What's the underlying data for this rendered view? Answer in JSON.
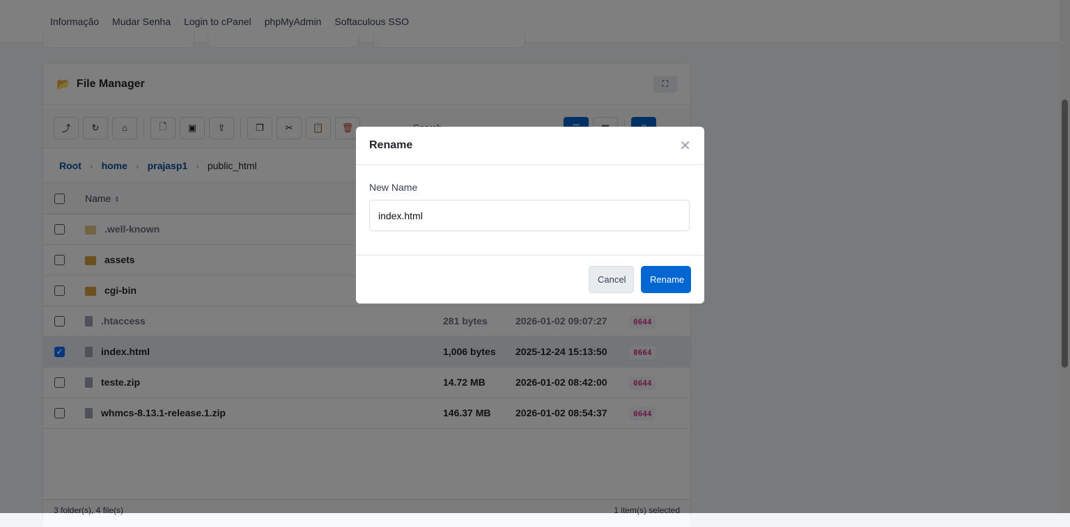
{
  "nav": [
    "Informação",
    "Mudar Senha",
    "Login to cPanel",
    "phpMyAdmin",
    "Softaculous SSO"
  ],
  "file_manager": {
    "title": "File Manager",
    "search_label": "Search",
    "toolbar": [
      {
        "icon": "level-up-icon",
        "glyph": "⤴"
      },
      {
        "icon": "refresh-icon",
        "glyph": "↻"
      },
      {
        "icon": "home-icon",
        "glyph": "⌂"
      },
      {
        "icon": "new-file-icon",
        "glyph": "🗋"
      },
      {
        "icon": "new-folder-icon",
        "glyph": "▣"
      },
      {
        "icon": "upload-icon",
        "glyph": "⇪"
      },
      {
        "icon": "copy-icon",
        "glyph": "❐"
      },
      {
        "icon": "cut-icon",
        "glyph": "✂"
      },
      {
        "icon": "paste-icon",
        "glyph": "📋"
      },
      {
        "icon": "delete-icon",
        "glyph": "🗑"
      }
    ],
    "breadcrumb": [
      "Root",
      "home",
      "prajasp1"
    ],
    "breadcrumb_current": "public_html",
    "column_name": "Name",
    "rows": [
      {
        "name": ".well-known",
        "type": "folder",
        "size": "",
        "modified": "",
        "perms": "",
        "dim": true,
        "checked": false
      },
      {
        "name": "assets",
        "type": "folder",
        "size": "",
        "modified": "",
        "perms": "",
        "dim": false,
        "checked": false
      },
      {
        "name": "cgi-bin",
        "type": "folder",
        "size": "",
        "modified": "",
        "perms": "",
        "dim": false,
        "checked": false
      },
      {
        "name": ".htaccess",
        "type": "file",
        "size": "281 bytes",
        "modified": "2026-01-02 09:07:27",
        "perms": "0644",
        "dim": true,
        "checked": false
      },
      {
        "name": "index.html",
        "type": "file",
        "size": "1,006 bytes",
        "modified": "2025-12-24 15:13:50",
        "perms": "0664",
        "dim": false,
        "checked": true
      },
      {
        "name": "teste.zip",
        "type": "file",
        "size": "14.72 MB",
        "modified": "2026-01-02 08:42:00",
        "perms": "0644",
        "dim": false,
        "checked": false
      },
      {
        "name": "whmcs-8.13.1-release.1.zip",
        "type": "file",
        "size": "146.37 MB",
        "modified": "2026-01-02 08:54:37",
        "perms": "0644",
        "dim": false,
        "checked": false
      }
    ],
    "footer_left": "3 folder(s), 4 file(s)",
    "footer_right": "1 item(s) selected"
  },
  "modal": {
    "title": "Rename",
    "label": "New Name",
    "value": "index.html",
    "cancel": "Cancel",
    "confirm": "Rename"
  },
  "colors": {
    "primary": "#0066d1",
    "folder": "#d4a23a",
    "perm": "#d63384"
  }
}
